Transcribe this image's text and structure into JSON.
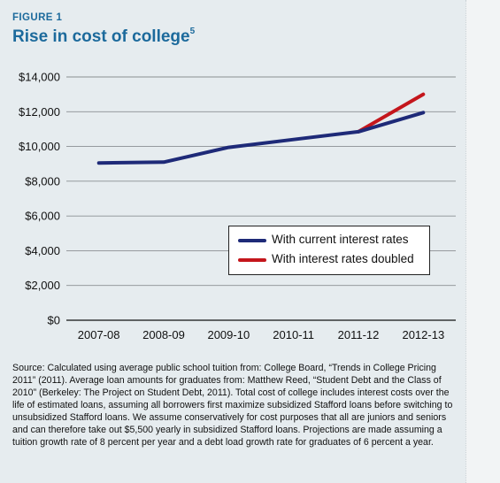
{
  "figure": {
    "label": "FIGURE 1",
    "title": "Rise in cost of college",
    "title_footnote": "5"
  },
  "colors": {
    "panel_bg": "#e6ecef",
    "title": "#1c6a9c",
    "current_rates": "#1e2a78",
    "doubled_rates": "#c4161c"
  },
  "chart_data": {
    "type": "line",
    "title": "Rise in cost of college",
    "x": [
      "2007-08",
      "2008-09",
      "2009-10",
      "2010-11",
      "2011-12",
      "2012-13"
    ],
    "yticks": [
      "$0",
      "$2,000",
      "$4,000",
      "$6,000",
      "$8,000",
      "$10,000",
      "$12,000",
      "$14,000"
    ],
    "ylim": [
      0,
      14000
    ],
    "grid": true,
    "legend_position": "center-right",
    "series": [
      {
        "name": "With current interest rates",
        "color": "#1e2a78",
        "values": [
          9050,
          9100,
          9950,
          10400,
          10850,
          11950
        ]
      },
      {
        "name": "With interest rates doubled",
        "color": "#c4161c",
        "values": [
          null,
          null,
          null,
          null,
          10850,
          13000
        ]
      }
    ]
  },
  "source_note": "Source: Calculated using average public school tuition from: College Board, “Trends in College Pricing 2011” (2011). Average loan amounts for graduates from: Matthew Reed, “Student Debt and the Class of 2010” (Berkeley: The Project on Student Debt, 2011). Total cost of college includes interest costs over the life of estimated loans, assuming all borrowers first maximize subsidized Stafford loans before switching to unsubsidized Stafford loans. We assume conservatively for cost purposes that all are juniors and seniors and can therefore take out $5,500 yearly in subsidized Stafford loans. Projections are made assuming a tuition growth rate of 8 percent per year and a debt load growth rate for graduates of 6 percent a year."
}
